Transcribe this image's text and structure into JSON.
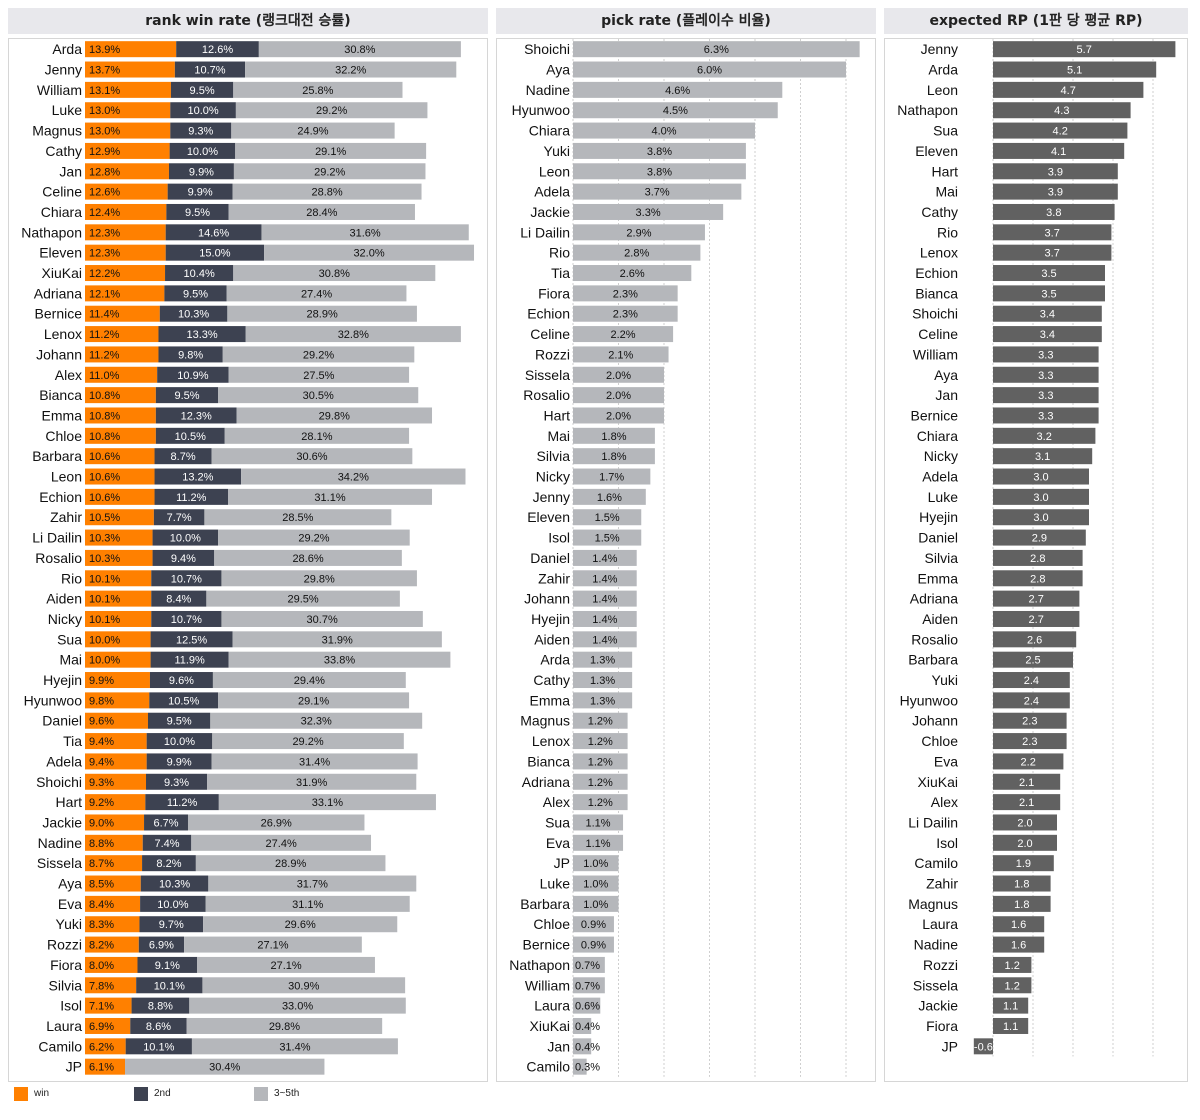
{
  "chart_data": [
    {
      "type": "bar",
      "stacked": true,
      "title": "rank win rate (랭크대전 승률)",
      "categories": [
        "Arda",
        "Jenny",
        "William",
        "Luke",
        "Magnus",
        "Cathy",
        "Jan",
        "Celine",
        "Chiara",
        "Nathapon",
        "Eleven",
        "XiuKai",
        "Adriana",
        "Bernice",
        "Lenox",
        "Johann",
        "Alex",
        "Bianca",
        "Emma",
        "Chloe",
        "Barbara",
        "Leon",
        "Echion",
        "Zahir",
        "Li Dailin",
        "Rosalio",
        "Rio",
        "Aiden",
        "Nicky",
        "Sua",
        "Mai",
        "Hyejin",
        "Hyunwoo",
        "Daniel",
        "Tia",
        "Adela",
        "Shoichi",
        "Hart",
        "Jackie",
        "Nadine",
        "Sissela",
        "Aya",
        "Eva",
        "Yuki",
        "Rozzi",
        "Fiora",
        "Silvia",
        "Isol",
        "Laura",
        "Camilo",
        "JP"
      ],
      "series": [
        {
          "name": "win",
          "color": "#ff8000",
          "values": [
            13.9,
            13.7,
            13.1,
            13.0,
            13.0,
            12.9,
            12.8,
            12.6,
            12.4,
            12.3,
            12.3,
            12.2,
            12.1,
            11.4,
            11.2,
            11.2,
            11.0,
            10.8,
            10.8,
            10.8,
            10.6,
            10.6,
            10.6,
            10.5,
            10.3,
            10.3,
            10.1,
            10.1,
            10.1,
            10.0,
            10.0,
            9.9,
            9.8,
            9.6,
            9.4,
            9.4,
            9.3,
            9.2,
            9.0,
            8.8,
            8.7,
            8.5,
            8.4,
            8.3,
            8.2,
            8.0,
            7.8,
            7.1,
            6.9,
            6.2,
            6.1
          ]
        },
        {
          "name": "2nd",
          "color": "#3d4251",
          "values": [
            12.6,
            10.7,
            9.5,
            10.0,
            9.3,
            10.0,
            9.9,
            9.9,
            9.5,
            14.6,
            15.0,
            10.4,
            9.5,
            10.3,
            13.3,
            9.8,
            10.9,
            9.5,
            12.3,
            10.5,
            8.7,
            13.2,
            11.2,
            7.7,
            10.0,
            9.4,
            10.7,
            8.4,
            10.7,
            12.5,
            11.9,
            9.6,
            10.5,
            9.5,
            10.0,
            9.9,
            9.3,
            11.2,
            6.7,
            7.4,
            8.2,
            10.3,
            10.0,
            9.7,
            6.9,
            9.1,
            10.1,
            8.8,
            8.6,
            10.1,
            null
          ]
        },
        {
          "name": "3~5th",
          "color": "#b5b7bb",
          "values": [
            30.8,
            32.2,
            25.8,
            29.2,
            24.9,
            29.1,
            29.2,
            28.8,
            28.4,
            31.6,
            32.0,
            30.8,
            27.4,
            28.9,
            32.8,
            29.2,
            27.5,
            30.5,
            29.8,
            28.1,
            30.6,
            34.2,
            31.1,
            28.5,
            29.2,
            28.6,
            29.8,
            29.5,
            30.7,
            31.9,
            33.8,
            29.4,
            29.1,
            32.3,
            29.2,
            31.4,
            31.9,
            33.1,
            26.9,
            27.4,
            28.9,
            31.7,
            31.1,
            29.6,
            27.1,
            27.1,
            30.9,
            33.0,
            29.8,
            31.4,
            30.4
          ]
        }
      ],
      "value_suffix": "%",
      "legend_position": "bottom-left",
      "grid": false
    },
    {
      "type": "bar",
      "title": "pick rate (플레이수 비율)",
      "categories": [
        "Shoichi",
        "Aya",
        "Nadine",
        "Hyunwoo",
        "Chiara",
        "Yuki",
        "Leon",
        "Adela",
        "Jackie",
        "Li Dailin",
        "Rio",
        "Tia",
        "Fiora",
        "Echion",
        "Celine",
        "Rozzi",
        "Sissela",
        "Rosalio",
        "Hart",
        "Mai",
        "Silvia",
        "Nicky",
        "Jenny",
        "Eleven",
        "Isol",
        "Daniel",
        "Zahir",
        "Johann",
        "Hyejin",
        "Aiden",
        "Arda",
        "Cathy",
        "Emma",
        "Magnus",
        "Lenox",
        "Bianca",
        "Adriana",
        "Alex",
        "Sua",
        "Eva",
        "JP",
        "Luke",
        "Barbara",
        "Chloe",
        "Bernice",
        "Nathapon",
        "William",
        "Laura",
        "XiuKai",
        "Jan",
        "Camilo"
      ],
      "values": [
        6.3,
        6.0,
        4.6,
        4.5,
        4.0,
        3.8,
        3.8,
        3.7,
        3.3,
        2.9,
        2.8,
        2.6,
        2.3,
        2.3,
        2.2,
        2.1,
        2.0,
        2.0,
        2.0,
        1.8,
        1.8,
        1.7,
        1.6,
        1.5,
        1.5,
        1.4,
        1.4,
        1.4,
        1.4,
        1.4,
        1.3,
        1.3,
        1.3,
        1.2,
        1.2,
        1.2,
        1.2,
        1.2,
        1.1,
        1.1,
        1.0,
        1.0,
        1.0,
        0.9,
        0.9,
        0.7,
        0.7,
        0.6,
        0.4,
        0.4,
        0.3
      ],
      "value_suffix": "%",
      "color": "#b5b7bb",
      "grid": true
    },
    {
      "type": "bar",
      "title": "expected RP (1판 당 평균 RP)",
      "categories": [
        "Jenny",
        "Arda",
        "Leon",
        "Nathapon",
        "Sua",
        "Eleven",
        "Hart",
        "Mai",
        "Cathy",
        "Rio",
        "Lenox",
        "Echion",
        "Bianca",
        "Shoichi",
        "Celine",
        "William",
        "Aya",
        "Jan",
        "Bernice",
        "Chiara",
        "Nicky",
        "Adela",
        "Luke",
        "Hyejin",
        "Daniel",
        "Silvia",
        "Emma",
        "Adriana",
        "Aiden",
        "Rosalio",
        "Barbara",
        "Yuki",
        "Hyunwoo",
        "Johann",
        "Chloe",
        "Eva",
        "XiuKai",
        "Alex",
        "Li Dailin",
        "Isol",
        "Camilo",
        "Zahir",
        "Magnus",
        "Laura",
        "Nadine",
        "Rozzi",
        "Sissela",
        "Jackie",
        "Fiora",
        "JP"
      ],
      "values": [
        5.7,
        5.1,
        4.7,
        4.3,
        4.2,
        4.1,
        3.9,
        3.9,
        3.8,
        3.7,
        3.7,
        3.5,
        3.5,
        3.4,
        3.4,
        3.3,
        3.3,
        3.3,
        3.3,
        3.2,
        3.1,
        3.0,
        3.0,
        3.0,
        2.9,
        2.8,
        2.8,
        2.7,
        2.7,
        2.6,
        2.5,
        2.4,
        2.4,
        2.3,
        2.3,
        2.2,
        2.1,
        2.1,
        2.0,
        2.0,
        1.9,
        1.8,
        1.8,
        1.6,
        1.6,
        1.2,
        1.2,
        1.1,
        1.1,
        -0.6
      ],
      "color": "#616161",
      "grid": true
    }
  ],
  "legend": [
    {
      "label": "win",
      "color": "#ff8000"
    },
    {
      "label": "2nd",
      "color": "#3d4251"
    },
    {
      "label": "3~5th",
      "color": "#b5b7bb"
    }
  ]
}
